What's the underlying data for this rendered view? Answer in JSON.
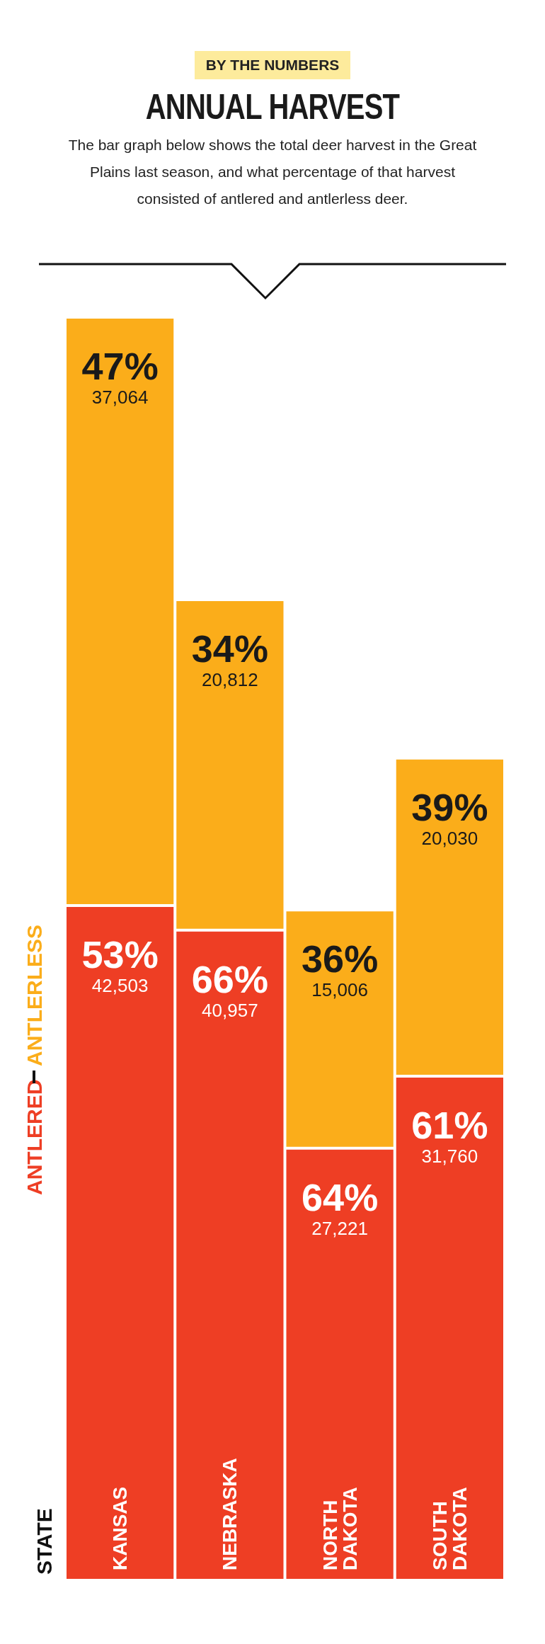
{
  "chart_data": {
    "type": "bar",
    "title": "ANNUAL HARVEST",
    "subtitle": "The bar graph below shows the total deer harvest in the Great Plains last season, and what percentage of that harvest consisted of antlered and antlerless deer.",
    "annotations": [
      "BY THE NUMBERS",
      "STATE"
    ],
    "categories": [
      "KANSAS",
      "NEBRASKA",
      "NORTH DAKOTA",
      "SOUTH DAKOTA"
    ],
    "stacked": true,
    "legend": "left",
    "grid": false,
    "series": [
      {
        "name": "ANTLERED",
        "color": "#ee3e24",
        "values": [
          42503,
          40957,
          27221,
          31760
        ],
        "value_labels": [
          "53%\n42,503",
          "66%\n40,957",
          "64%\n27,221",
          "61%\n31,760"
        ]
      },
      {
        "name": "ANTLERLESS",
        "color": "#fbad1a",
        "values": [
          37064,
          20812,
          15006,
          20030
        ],
        "value_labels": [
          "47%\n37,064",
          "34%\n20,812",
          "36%\n15,006",
          "39%\n20,030"
        ]
      }
    ]
  }
}
